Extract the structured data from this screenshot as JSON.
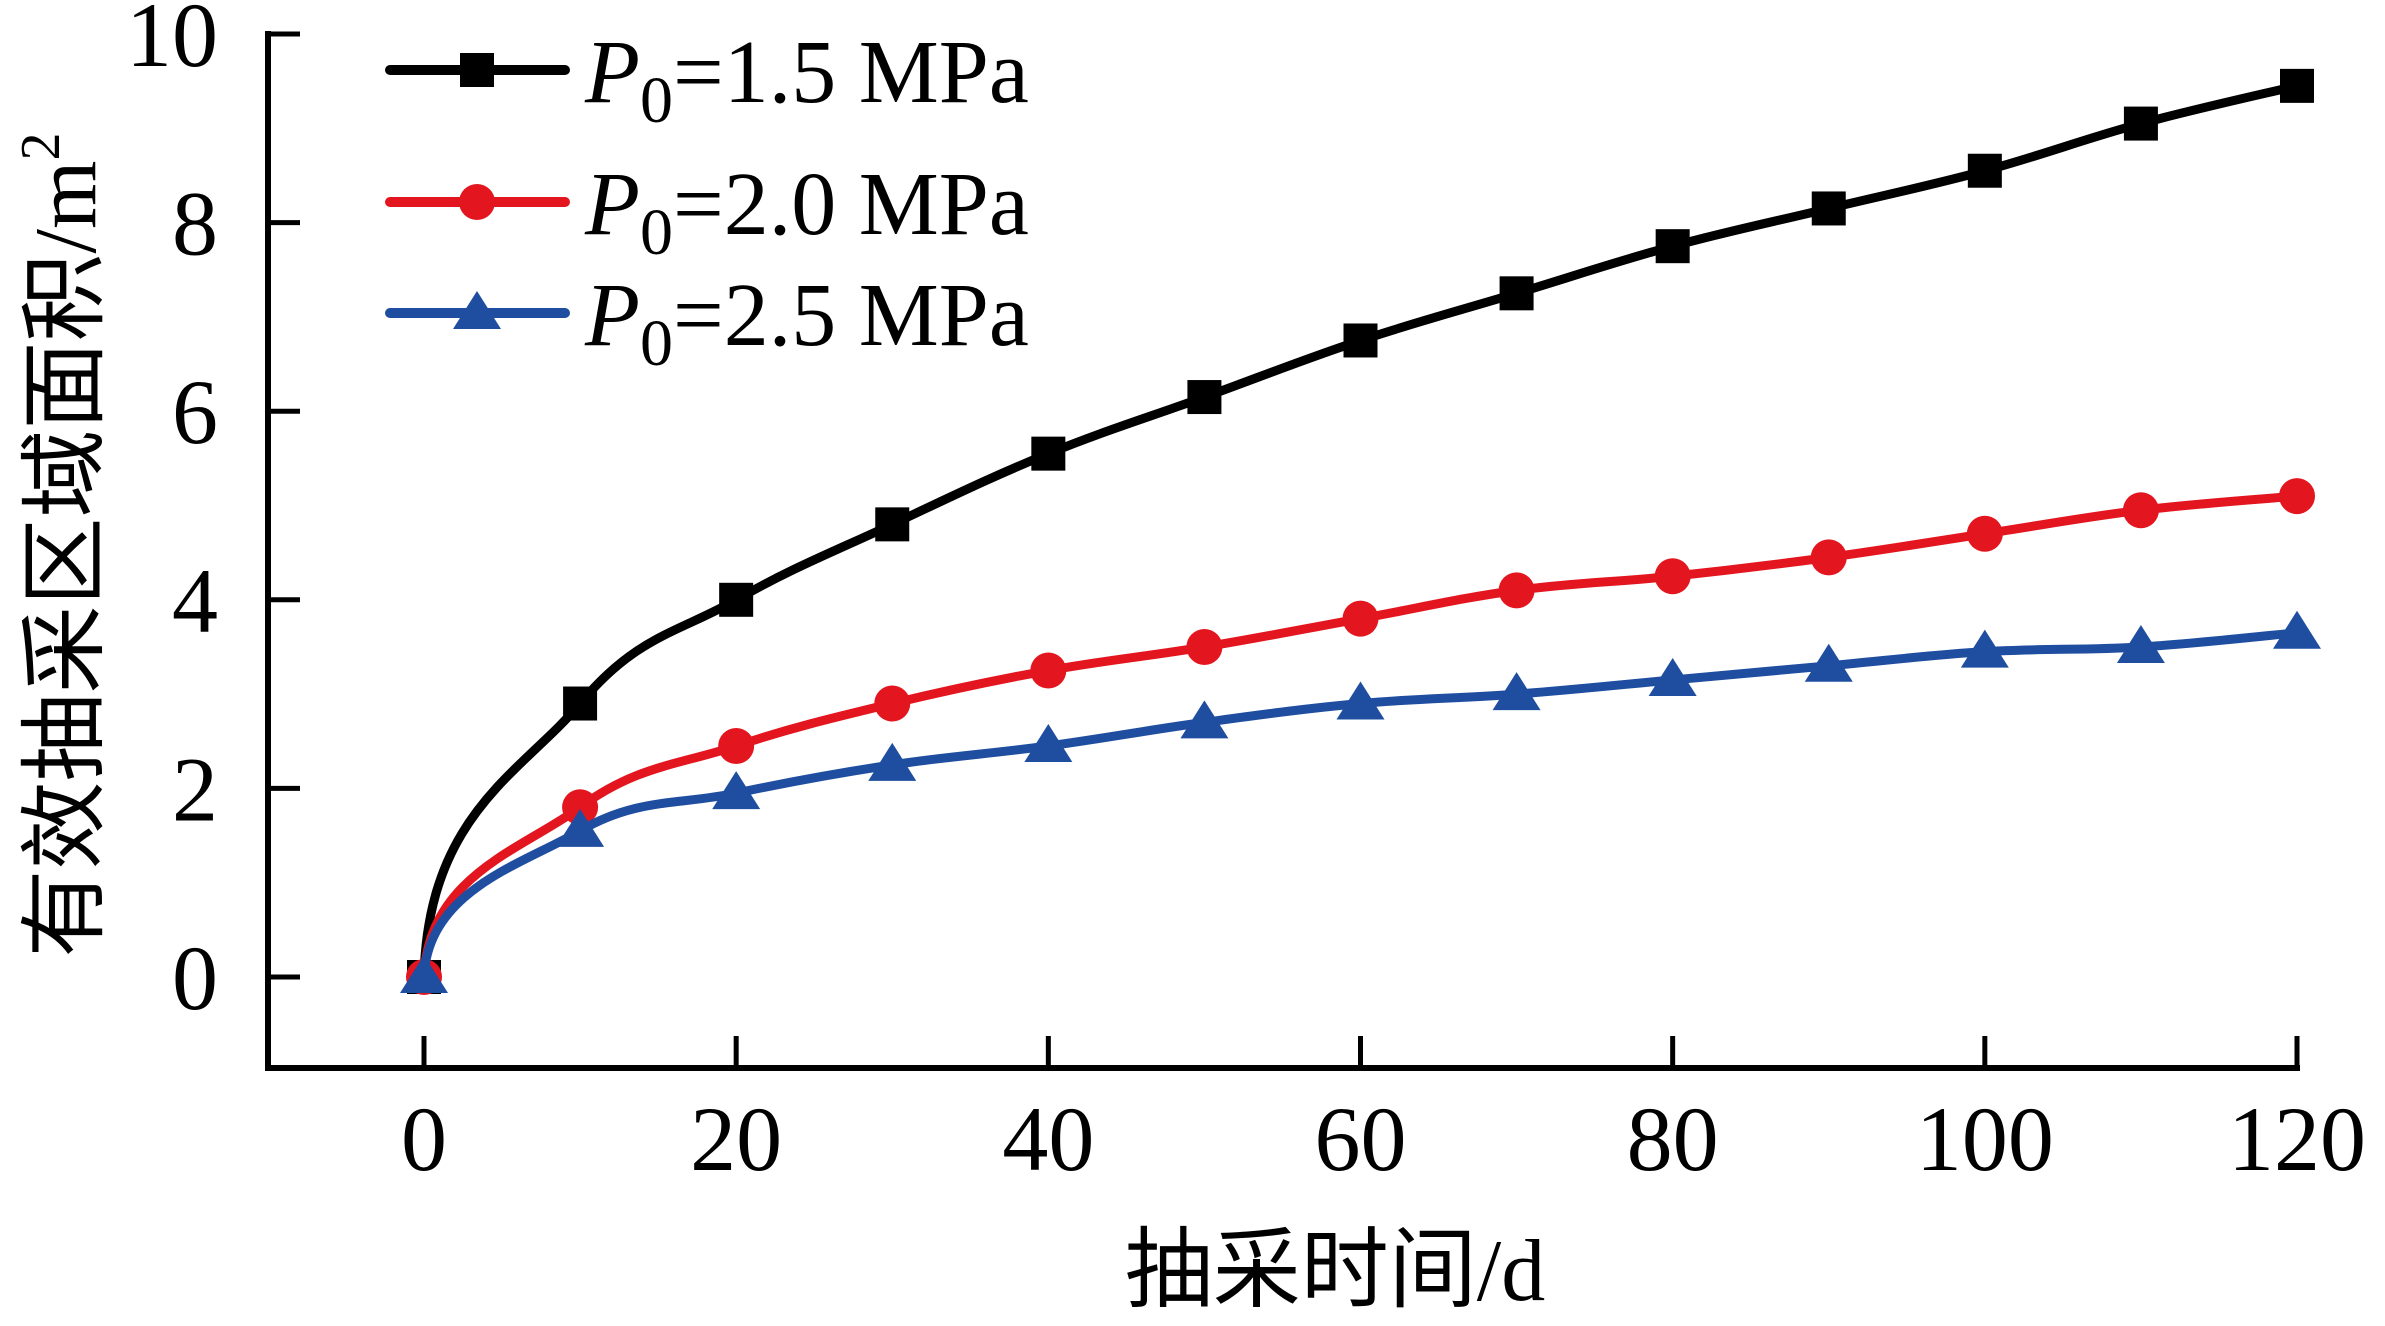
{
  "chart_data": {
    "type": "line",
    "title": "",
    "xlabel": "抽采时间/d",
    "ylabel": "有效抽采区域面积/m²",
    "ylabel_main": "有效抽采区域面积/m",
    "ylabel_sup": "2",
    "xlim": [
      -10,
      120
    ],
    "ylim": [
      -1,
      10
    ],
    "xticks": [
      0,
      20,
      40,
      60,
      80,
      100,
      120
    ],
    "yticks": [
      0,
      2,
      4,
      6,
      8,
      10
    ],
    "xtick_labels": [
      "0",
      "20",
      "40",
      "60",
      "80",
      "100",
      "120"
    ],
    "ytick_labels": [
      "0",
      "2",
      "4",
      "6",
      "8",
      "10"
    ],
    "grid": false,
    "legend_position": "top-left",
    "x": [
      0,
      10,
      20,
      30,
      40,
      50,
      60,
      70,
      80,
      90,
      100,
      110,
      120
    ],
    "series": [
      {
        "name": "P0=1.5 MPa",
        "legend_var": "P",
        "legend_sub": "0",
        "legend_rest": "=1.5 MPa",
        "color": "#000000",
        "marker": "square",
        "values": [
          0,
          2.9,
          4.0,
          4.8,
          5.55,
          6.15,
          6.75,
          7.25,
          7.75,
          8.15,
          8.55,
          9.05,
          9.45
        ]
      },
      {
        "name": "P0=2.0 MPa",
        "legend_var": "P",
        "legend_sub": "0",
        "legend_rest": "=2.0 MPa",
        "color": "#e3161f",
        "marker": "circle",
        "values": [
          0,
          1.8,
          2.45,
          2.9,
          3.25,
          3.5,
          3.8,
          4.1,
          4.25,
          4.45,
          4.7,
          4.95,
          5.1
        ]
      },
      {
        "name": "P0=2.5 MPa",
        "legend_var": "P",
        "legend_sub": "0",
        "legend_rest": "=2.5 MPa",
        "color": "#1f4ea0",
        "marker": "triangle",
        "values": [
          0,
          1.55,
          1.95,
          2.25,
          2.45,
          2.7,
          2.9,
          3.0,
          3.15,
          3.3,
          3.45,
          3.5,
          3.65
        ]
      }
    ]
  }
}
